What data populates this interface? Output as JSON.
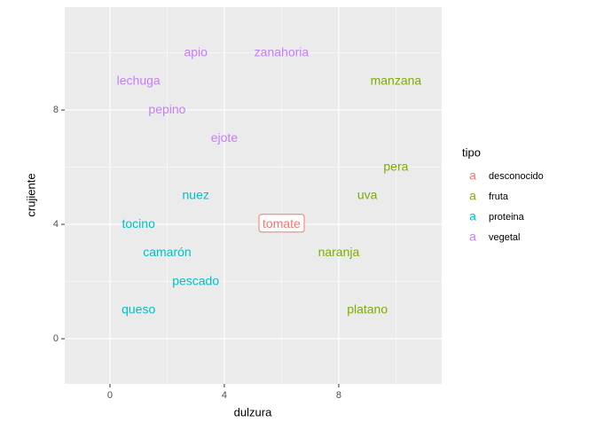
{
  "chart_data": {
    "type": "text-scatter",
    "x_label": "dulzura",
    "y_label": "crujiente",
    "xlim": [
      -1.58,
      11.6
    ],
    "ylim": [
      -1.58,
      11.6
    ],
    "xticks": [
      0,
      4,
      8
    ],
    "yticks": [
      0,
      4,
      8
    ],
    "xminor": [
      2,
      6,
      10
    ],
    "yminor": [
      2,
      6,
      10
    ],
    "grid": true,
    "legend_title": "tipo",
    "legend_key_glyph": "a",
    "legend_position": "right",
    "series": [
      {
        "name": "desconocido",
        "color": "#F8766D",
        "label_box": true,
        "labels": [
          "tomate"
        ],
        "x": [
          6
        ],
        "values": [
          4
        ]
      },
      {
        "name": "fruta",
        "color": "#7CAE00",
        "label_box": false,
        "labels": [
          "manzana",
          "pera",
          "uva",
          "naranja",
          "platano"
        ],
        "x": [
          10,
          10,
          9,
          8,
          9
        ],
        "values": [
          9,
          6,
          5,
          3,
          1
        ]
      },
      {
        "name": "proteina",
        "color": "#00BFC4",
        "label_box": false,
        "labels": [
          "nuez",
          "tocino",
          "camarón",
          "pescado",
          "queso"
        ],
        "x": [
          3,
          1,
          2,
          3,
          1
        ],
        "values": [
          5,
          4,
          3,
          2,
          1
        ]
      },
      {
        "name": "vegetal",
        "color": "#C77CFF",
        "label_box": false,
        "labels": [
          "apio",
          "zanahoria",
          "lechuga",
          "pepino",
          "ejote"
        ],
        "x": [
          3,
          6,
          1,
          2,
          4
        ],
        "values": [
          10,
          10,
          9,
          8,
          7
        ]
      }
    ]
  }
}
